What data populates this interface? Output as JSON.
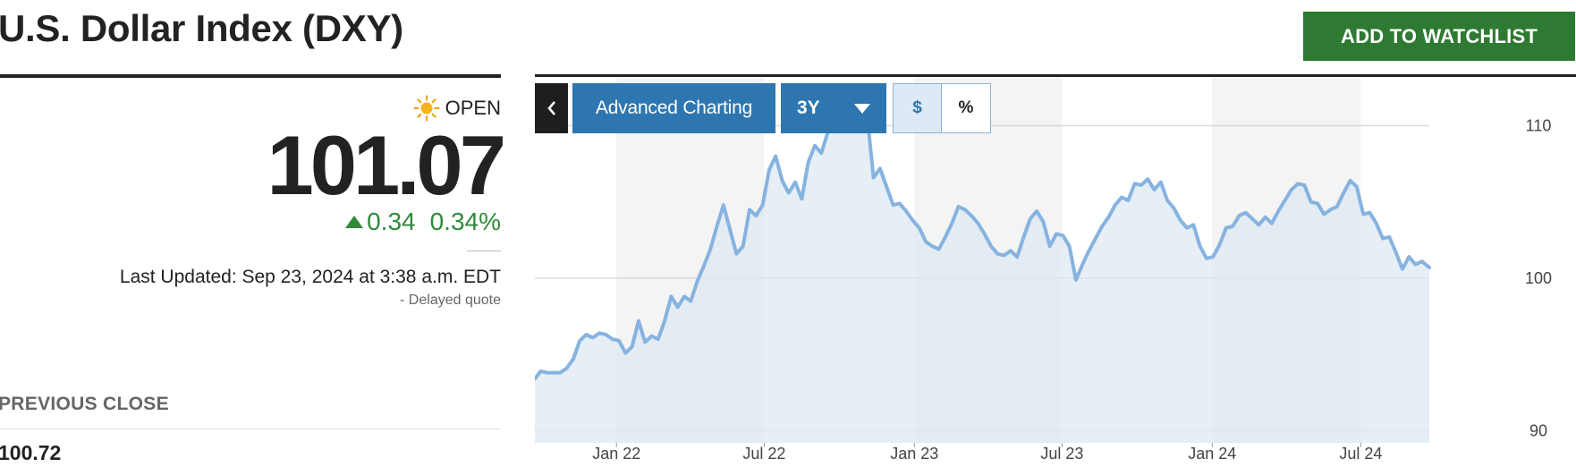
{
  "header": {
    "title": "U.S. Dollar Index (DXY)",
    "watchlist_button": "ADD TO WATCHLIST"
  },
  "quote": {
    "status_icon": "sun-icon",
    "status": "OPEN",
    "price": "101.07",
    "change": "0.34",
    "change_percent": "0.34%",
    "last_updated": "Last Updated: Sep 23, 2024 at 3:38 a.m. EDT",
    "delayed_note": "-  Delayed quote",
    "previous_close_label": "PREVIOUS CLOSE",
    "previous_close_value": "100.72"
  },
  "colors": {
    "title": "#222222",
    "watchlist_button": "#2f7a32",
    "change_positive": "#2f8a3a",
    "toolbar_accent": "#2e76b0",
    "series_line": "#86b3df",
    "series_fill": "#dce8f3"
  },
  "toolbar": {
    "back_icon": "chevron-left-icon",
    "advanced_label": "Advanced Charting",
    "range_label": "3Y",
    "units": [
      {
        "label": "$",
        "active": true
      },
      {
        "label": "%",
        "active": false
      }
    ]
  },
  "chart_data": {
    "type": "area",
    "title": "",
    "xlabel": "",
    "ylabel": "",
    "ylim": [
      89.2,
      113.2
    ],
    "y_ticks": [
      90,
      100,
      110
    ],
    "y_tick_labels": [
      "90",
      "100",
      "110"
    ],
    "x_tick_labels": [
      "Jan 22",
      "Jul 22",
      "Jan 23",
      "Jul 23",
      "Jan 24",
      "Jul 24"
    ],
    "x_tick_dates": [
      "2022-01-01",
      "2022-07-01",
      "2023-01-01",
      "2023-07-01",
      "2024-01-01",
      "2024-07-01"
    ],
    "xlim": [
      "2021-09-23",
      "2024-09-23"
    ],
    "grid": true,
    "shaded_bands": [
      [
        "2022-01-01",
        "2022-07-01"
      ],
      [
        "2023-01-01",
        "2023-07-01"
      ],
      [
        "2024-01-01",
        "2024-07-01"
      ]
    ],
    "series": [
      {
        "x": [
          "2021-09-23",
          "2021-09-30",
          "2021-10-08",
          "2021-10-16",
          "2021-10-24",
          "2021-11-01",
          "2021-11-09",
          "2021-11-17",
          "2021-11-25",
          "2021-12-03",
          "2021-12-11",
          "2021-12-19",
          "2021-12-27",
          "2022-01-04",
          "2022-01-12",
          "2022-01-20",
          "2022-01-28",
          "2022-02-05",
          "2022-02-13",
          "2022-02-21",
          "2022-03-01",
          "2022-03-09",
          "2022-03-17",
          "2022-03-25",
          "2022-04-02",
          "2022-04-10",
          "2022-04-18",
          "2022-04-26",
          "2022-05-04",
          "2022-05-12",
          "2022-05-20",
          "2022-05-28",
          "2022-06-05",
          "2022-06-13",
          "2022-06-21",
          "2022-06-29",
          "2022-07-07",
          "2022-07-15",
          "2022-07-23",
          "2022-07-31",
          "2022-08-08",
          "2022-08-16",
          "2022-08-24",
          "2022-09-01",
          "2022-09-09",
          "2022-09-17",
          "2022-09-25",
          "2022-10-03",
          "2022-10-11",
          "2022-10-19",
          "2022-10-27",
          "2022-11-04",
          "2022-11-12",
          "2022-11-20",
          "2022-11-28",
          "2022-12-06",
          "2022-12-14",
          "2022-12-22",
          "2022-12-30",
          "2023-01-07",
          "2023-01-15",
          "2023-01-23",
          "2023-01-31",
          "2023-02-08",
          "2023-02-16",
          "2023-02-24",
          "2023-03-04",
          "2023-03-12",
          "2023-03-20",
          "2023-03-28",
          "2023-04-05",
          "2023-04-13",
          "2023-04-21",
          "2023-04-29",
          "2023-05-07",
          "2023-05-15",
          "2023-05-23",
          "2023-05-31",
          "2023-06-08",
          "2023-06-16",
          "2023-06-24",
          "2023-07-02",
          "2023-07-10",
          "2023-07-18",
          "2023-07-26",
          "2023-08-03",
          "2023-08-11",
          "2023-08-19",
          "2023-08-27",
          "2023-09-04",
          "2023-09-12",
          "2023-09-20",
          "2023-09-28",
          "2023-10-06",
          "2023-10-14",
          "2023-10-22",
          "2023-10-30",
          "2023-11-07",
          "2023-11-15",
          "2023-11-23",
          "2023-12-01",
          "2023-12-09",
          "2023-12-17",
          "2023-12-25",
          "2024-01-02",
          "2024-01-10",
          "2024-01-18",
          "2024-01-26",
          "2024-02-03",
          "2024-02-11",
          "2024-02-19",
          "2024-02-27",
          "2024-03-06",
          "2024-03-14",
          "2024-03-22",
          "2024-03-30",
          "2024-04-07",
          "2024-04-15",
          "2024-04-23",
          "2024-05-01",
          "2024-05-09",
          "2024-05-17",
          "2024-05-25",
          "2024-06-02",
          "2024-06-10",
          "2024-06-18",
          "2024-06-26",
          "2024-07-04",
          "2024-07-12",
          "2024-07-20",
          "2024-07-28",
          "2024-08-05",
          "2024-08-13",
          "2024-08-21",
          "2024-08-29",
          "2024-09-06",
          "2024-09-14",
          "2024-09-23"
        ],
        "y": [
          93.4,
          93.9,
          93.8,
          93.8,
          93.8,
          94.1,
          94.7,
          95.9,
          96.3,
          96.1,
          96.4,
          96.3,
          96.0,
          95.9,
          95.1,
          95.5,
          97.2,
          95.8,
          96.2,
          96.0,
          97.2,
          98.8,
          98.1,
          98.8,
          98.5,
          99.8,
          100.8,
          101.9,
          103.4,
          104.8,
          103.2,
          101.6,
          102.1,
          104.5,
          104.1,
          104.8,
          107.1,
          108.0,
          106.4,
          105.6,
          106.3,
          105.2,
          107.6,
          108.7,
          108.2,
          109.6,
          112.3,
          111.2,
          112.5,
          111.1,
          110.8,
          110.7,
          106.6,
          107.2,
          106.0,
          104.8,
          104.9,
          104.4,
          103.8,
          103.3,
          102.4,
          102.1,
          101.9,
          102.7,
          103.6,
          104.7,
          104.5,
          104.1,
          103.6,
          102.9,
          102.1,
          101.6,
          101.5,
          101.8,
          101.4,
          102.7,
          103.9,
          104.4,
          103.7,
          102.1,
          102.9,
          102.8,
          102.1,
          99.9,
          100.9,
          101.8,
          102.6,
          103.4,
          104.0,
          104.8,
          105.3,
          105.1,
          106.2,
          106.1,
          106.5,
          105.8,
          106.3,
          105.1,
          104.6,
          103.8,
          103.3,
          103.5,
          102.1,
          101.3,
          101.4,
          102.2,
          103.3,
          103.4,
          104.1,
          104.3,
          103.9,
          103.5,
          104.0,
          103.6,
          104.4,
          105.1,
          105.8,
          106.2,
          106.1,
          105.0,
          104.9,
          104.2,
          104.5,
          104.7,
          105.6,
          106.4,
          106.0,
          104.2,
          104.3,
          103.6,
          102.6,
          102.7,
          101.7,
          100.6,
          101.4,
          100.9,
          101.1,
          100.7
        ]
      }
    ]
  }
}
